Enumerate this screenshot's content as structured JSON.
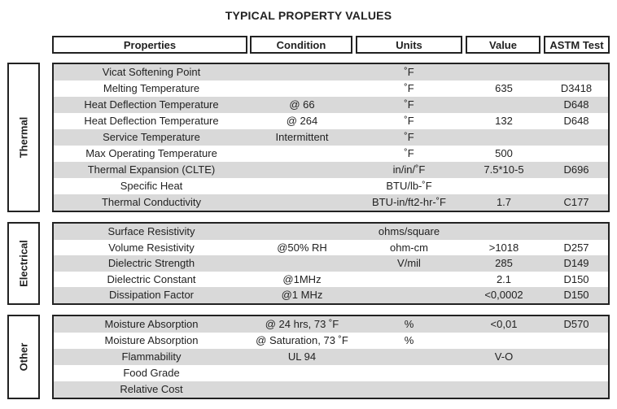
{
  "title": "TYPICAL PROPERTY VALUES",
  "headers": [
    "Properties",
    "Condition",
    "Units",
    "Value",
    "ASTM Test"
  ],
  "sections": [
    {
      "label": "Thermal",
      "rows": [
        [
          "Vicat Softening Point",
          "",
          "˚F",
          "",
          ""
        ],
        [
          "Melting Temperature",
          "",
          "˚F",
          "635",
          "D3418"
        ],
        [
          "Heat Deflection Temperature",
          "@ 66",
          "˚F",
          "",
          "D648"
        ],
        [
          "Heat Deflection Temperature",
          "@ 264",
          "˚F",
          "132",
          "D648"
        ],
        [
          "Service Temperature",
          "Intermittent",
          "˚F",
          "",
          ""
        ],
        [
          "Max Operating Temperature",
          "",
          "˚F",
          "500",
          ""
        ],
        [
          "Thermal Expansion (CLTE)",
          "",
          "in/in/˚F",
          "7.5*10-5",
          "D696"
        ],
        [
          "Specific Heat",
          "",
          "BTU/lb-˚F",
          "",
          ""
        ],
        [
          "Thermal Conductivity",
          "",
          "BTU-in/ft2-hr-˚F",
          "1.7",
          "C177"
        ]
      ]
    },
    {
      "label": "Electrical",
      "rows": [
        [
          "Surface Resistivity",
          "",
          "ohms/square",
          "",
          ""
        ],
        [
          "Volume Resistivity",
          "@50% RH",
          "ohm-cm",
          ">1018",
          "D257"
        ],
        [
          "Dielectric Strength",
          "",
          "V/mil",
          "285",
          "D149"
        ],
        [
          "Dielectric Constant",
          "@1MHz",
          "",
          "2.1",
          "D150"
        ],
        [
          "Dissipation Factor",
          "@1 MHz",
          "",
          "<0,0002",
          "D150"
        ]
      ]
    },
    {
      "label": "Other",
      "rows": [
        [
          "Moisture Absorption",
          "@ 24 hrs, 73 ˚F",
          "%",
          "<0,01",
          "D570"
        ],
        [
          "Moisture Absorption",
          "@ Saturation, 73 ˚F",
          "%",
          "",
          ""
        ],
        [
          "Flammability",
          "UL 94",
          "",
          "V-O",
          ""
        ],
        [
          "Food Grade",
          "",
          "",
          "",
          ""
        ],
        [
          "Relative Cost",
          "",
          "",
          "",
          ""
        ]
      ]
    }
  ]
}
